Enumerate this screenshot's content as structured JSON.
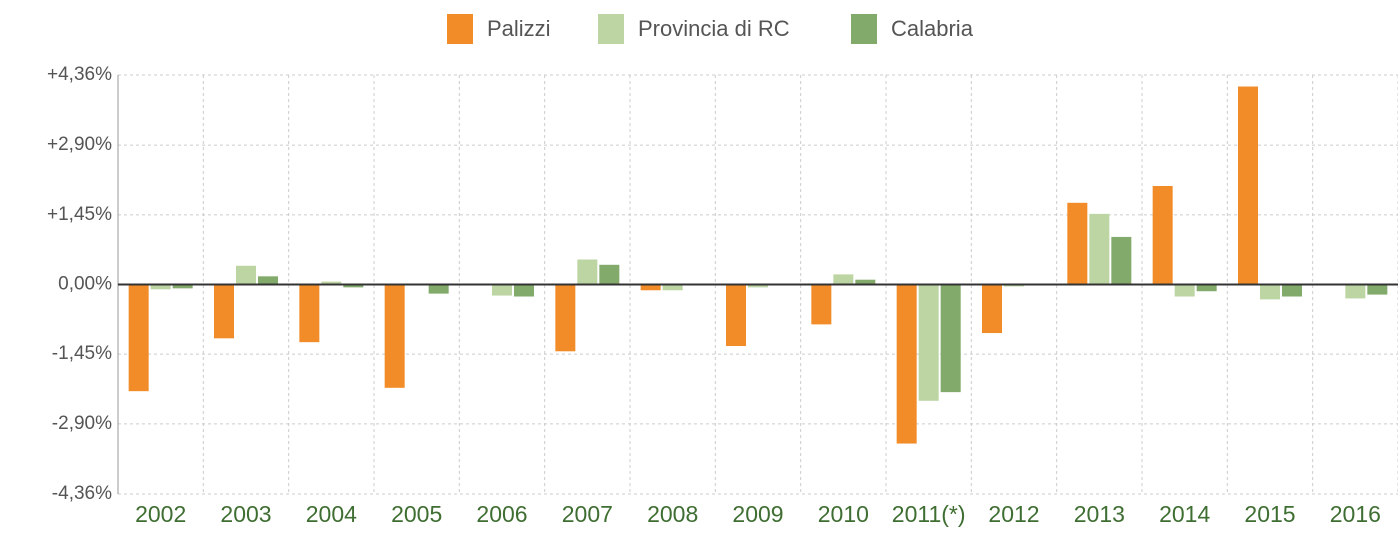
{
  "chart_data": {
    "type": "bar",
    "categories": [
      "2002",
      "2003",
      "2004",
      "2005",
      "2006",
      "2007",
      "2008",
      "2009",
      "2010",
      "2011(*)",
      "2012",
      "2013",
      "2014",
      "2015",
      "2016"
    ],
    "series": [
      {
        "name": "Palizzi",
        "color": "#f28c28",
        "values": [
          -2.22,
          -1.12,
          -1.2,
          -2.15,
          0,
          -1.39,
          -0.12,
          -1.28,
          -0.83,
          -3.31,
          -1.01,
          1.7,
          2.05,
          4.12,
          0
        ]
      },
      {
        "name": "Provincia di RC",
        "color": "#bcd5a3",
        "values": [
          -0.1,
          0.39,
          0.06,
          0,
          -0.23,
          0.52,
          -0.12,
          -0.06,
          0.21,
          -2.42,
          -0.04,
          1.47,
          -0.25,
          -0.31,
          -0.29
        ]
      },
      {
        "name": "Calabria",
        "color": "#82aa6a",
        "values": [
          -0.08,
          0.17,
          -0.06,
          -0.19,
          -0.25,
          0.41,
          0,
          0,
          0.1,
          -2.24,
          0,
          0.99,
          -0.14,
          -0.25,
          -0.21
        ]
      }
    ],
    "ylim": [
      -4.36,
      4.36
    ],
    "yticks": [
      {
        "value": 4.36,
        "label": "+4,36%"
      },
      {
        "value": 2.9,
        "label": "+2,90%"
      },
      {
        "value": 1.45,
        "label": "+1,45%"
      },
      {
        "value": 0,
        "label": "0,00%"
      },
      {
        "value": -1.45,
        "label": "-1,45%"
      },
      {
        "value": -2.9,
        "label": "-2,90%"
      },
      {
        "value": -4.36,
        "label": "-4,36%"
      }
    ],
    "grid": true,
    "legend": "top"
  }
}
